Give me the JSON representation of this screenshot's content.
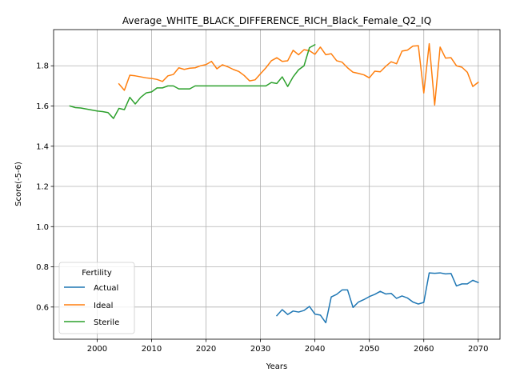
{
  "chart_data": {
    "type": "line",
    "title": "Average_WHITE_BLACK_DIFFERENCE_RICH_Black_Female_Q2_IQ",
    "xlabel": "Years",
    "ylabel": "Score(-5-6)",
    "xlim": [
      1992,
      2074
    ],
    "ylim": [
      0.44,
      1.98
    ],
    "xticks": [
      2000,
      2010,
      2020,
      2030,
      2040,
      2050,
      2060,
      2070
    ],
    "yticks": [
      0.6,
      0.8,
      1.0,
      1.2,
      1.4,
      1.6,
      1.8
    ],
    "grid": true,
    "legend": {
      "title": "Fertility",
      "position": "lower-left"
    },
    "series": [
      {
        "name": "Actual",
        "color": "#1f77b4",
        "x": [
          2033,
          2034,
          2035,
          2036,
          2037,
          2038,
          2039,
          2040,
          2041,
          2042,
          2043,
          2044,
          2045,
          2046,
          2047,
          2048,
          2049,
          2050,
          2051,
          2052,
          2053,
          2054,
          2055,
          2056,
          2057,
          2058,
          2059,
          2060,
          2061,
          2062,
          2063,
          2064,
          2065,
          2066,
          2067,
          2068,
          2069,
          2070
        ],
        "y": [
          0.557,
          0.587,
          0.563,
          0.58,
          0.575,
          0.583,
          0.603,
          0.565,
          0.56,
          0.522,
          0.65,
          0.663,
          0.685,
          0.685,
          0.598,
          0.625,
          0.637,
          0.652,
          0.663,
          0.678,
          0.665,
          0.668,
          0.643,
          0.655,
          0.645,
          0.625,
          0.615,
          0.623,
          0.77,
          0.768,
          0.77,
          0.765,
          0.767,
          0.705,
          0.715,
          0.715,
          0.733,
          0.722
        ]
      },
      {
        "name": "Ideal",
        "color": "#ff7f0e",
        "x": [
          2004,
          2005,
          2006,
          2007,
          2008,
          2009,
          2010,
          2011,
          2012,
          2013,
          2014,
          2015,
          2016,
          2017,
          2018,
          2019,
          2020,
          2021,
          2022,
          2023,
          2024,
          2025,
          2026,
          2027,
          2028,
          2029,
          2030,
          2031,
          2032,
          2033,
          2034,
          2035,
          2036,
          2037,
          2038,
          2039,
          2040,
          2041,
          2042,
          2043,
          2044,
          2045,
          2046,
          2047,
          2048,
          2049,
          2050,
          2051,
          2052,
          2053,
          2054,
          2055,
          2056,
          2057,
          2058,
          2059,
          2060,
          2061,
          2062,
          2063,
          2064,
          2065,
          2066,
          2067,
          2068,
          2069,
          2070
        ],
        "y": [
          1.71,
          1.678,
          1.753,
          1.75,
          1.745,
          1.74,
          1.737,
          1.732,
          1.722,
          1.75,
          1.757,
          1.79,
          1.782,
          1.788,
          1.79,
          1.8,
          1.806,
          1.822,
          1.785,
          1.805,
          1.795,
          1.782,
          1.772,
          1.752,
          1.725,
          1.73,
          1.76,
          1.79,
          1.825,
          1.84,
          1.822,
          1.825,
          1.877,
          1.855,
          1.88,
          1.875,
          1.857,
          1.893,
          1.855,
          1.86,
          1.825,
          1.818,
          1.79,
          1.768,
          1.762,
          1.755,
          1.74,
          1.773,
          1.77,
          1.797,
          1.82,
          1.81,
          1.873,
          1.878,
          1.898,
          1.9,
          1.665,
          1.91,
          1.605,
          1.893,
          1.838,
          1.84,
          1.8,
          1.793,
          1.768,
          1.697,
          1.718
        ]
      },
      {
        "name": "Sterile",
        "color": "#2ca02c",
        "x": [
          1995,
          1996,
          1997,
          1998,
          1999,
          2000,
          2001,
          2002,
          2003,
          2004,
          2005,
          2006,
          2007,
          2008,
          2009,
          2010,
          2011,
          2012,
          2013,
          2014,
          2015,
          2016,
          2017,
          2018,
          2019,
          2020,
          2021,
          2022,
          2023,
          2024,
          2025,
          2026,
          2027,
          2028,
          2029,
          2030,
          2031,
          2032,
          2033,
          2034,
          2035,
          2036,
          2037,
          2038,
          2039,
          2040
        ],
        "y": [
          1.6,
          1.592,
          1.59,
          1.585,
          1.58,
          1.575,
          1.572,
          1.567,
          1.538,
          1.588,
          1.582,
          1.643,
          1.61,
          1.643,
          1.665,
          1.67,
          1.69,
          1.69,
          1.7,
          1.7,
          1.685,
          1.685,
          1.685,
          1.7,
          1.7,
          1.7,
          1.7,
          1.7,
          1.7,
          1.7,
          1.7,
          1.7,
          1.7,
          1.7,
          1.7,
          1.7,
          1.7,
          1.717,
          1.712,
          1.745,
          1.697,
          1.745,
          1.78,
          1.8,
          1.89,
          1.905
        ]
      }
    ]
  }
}
